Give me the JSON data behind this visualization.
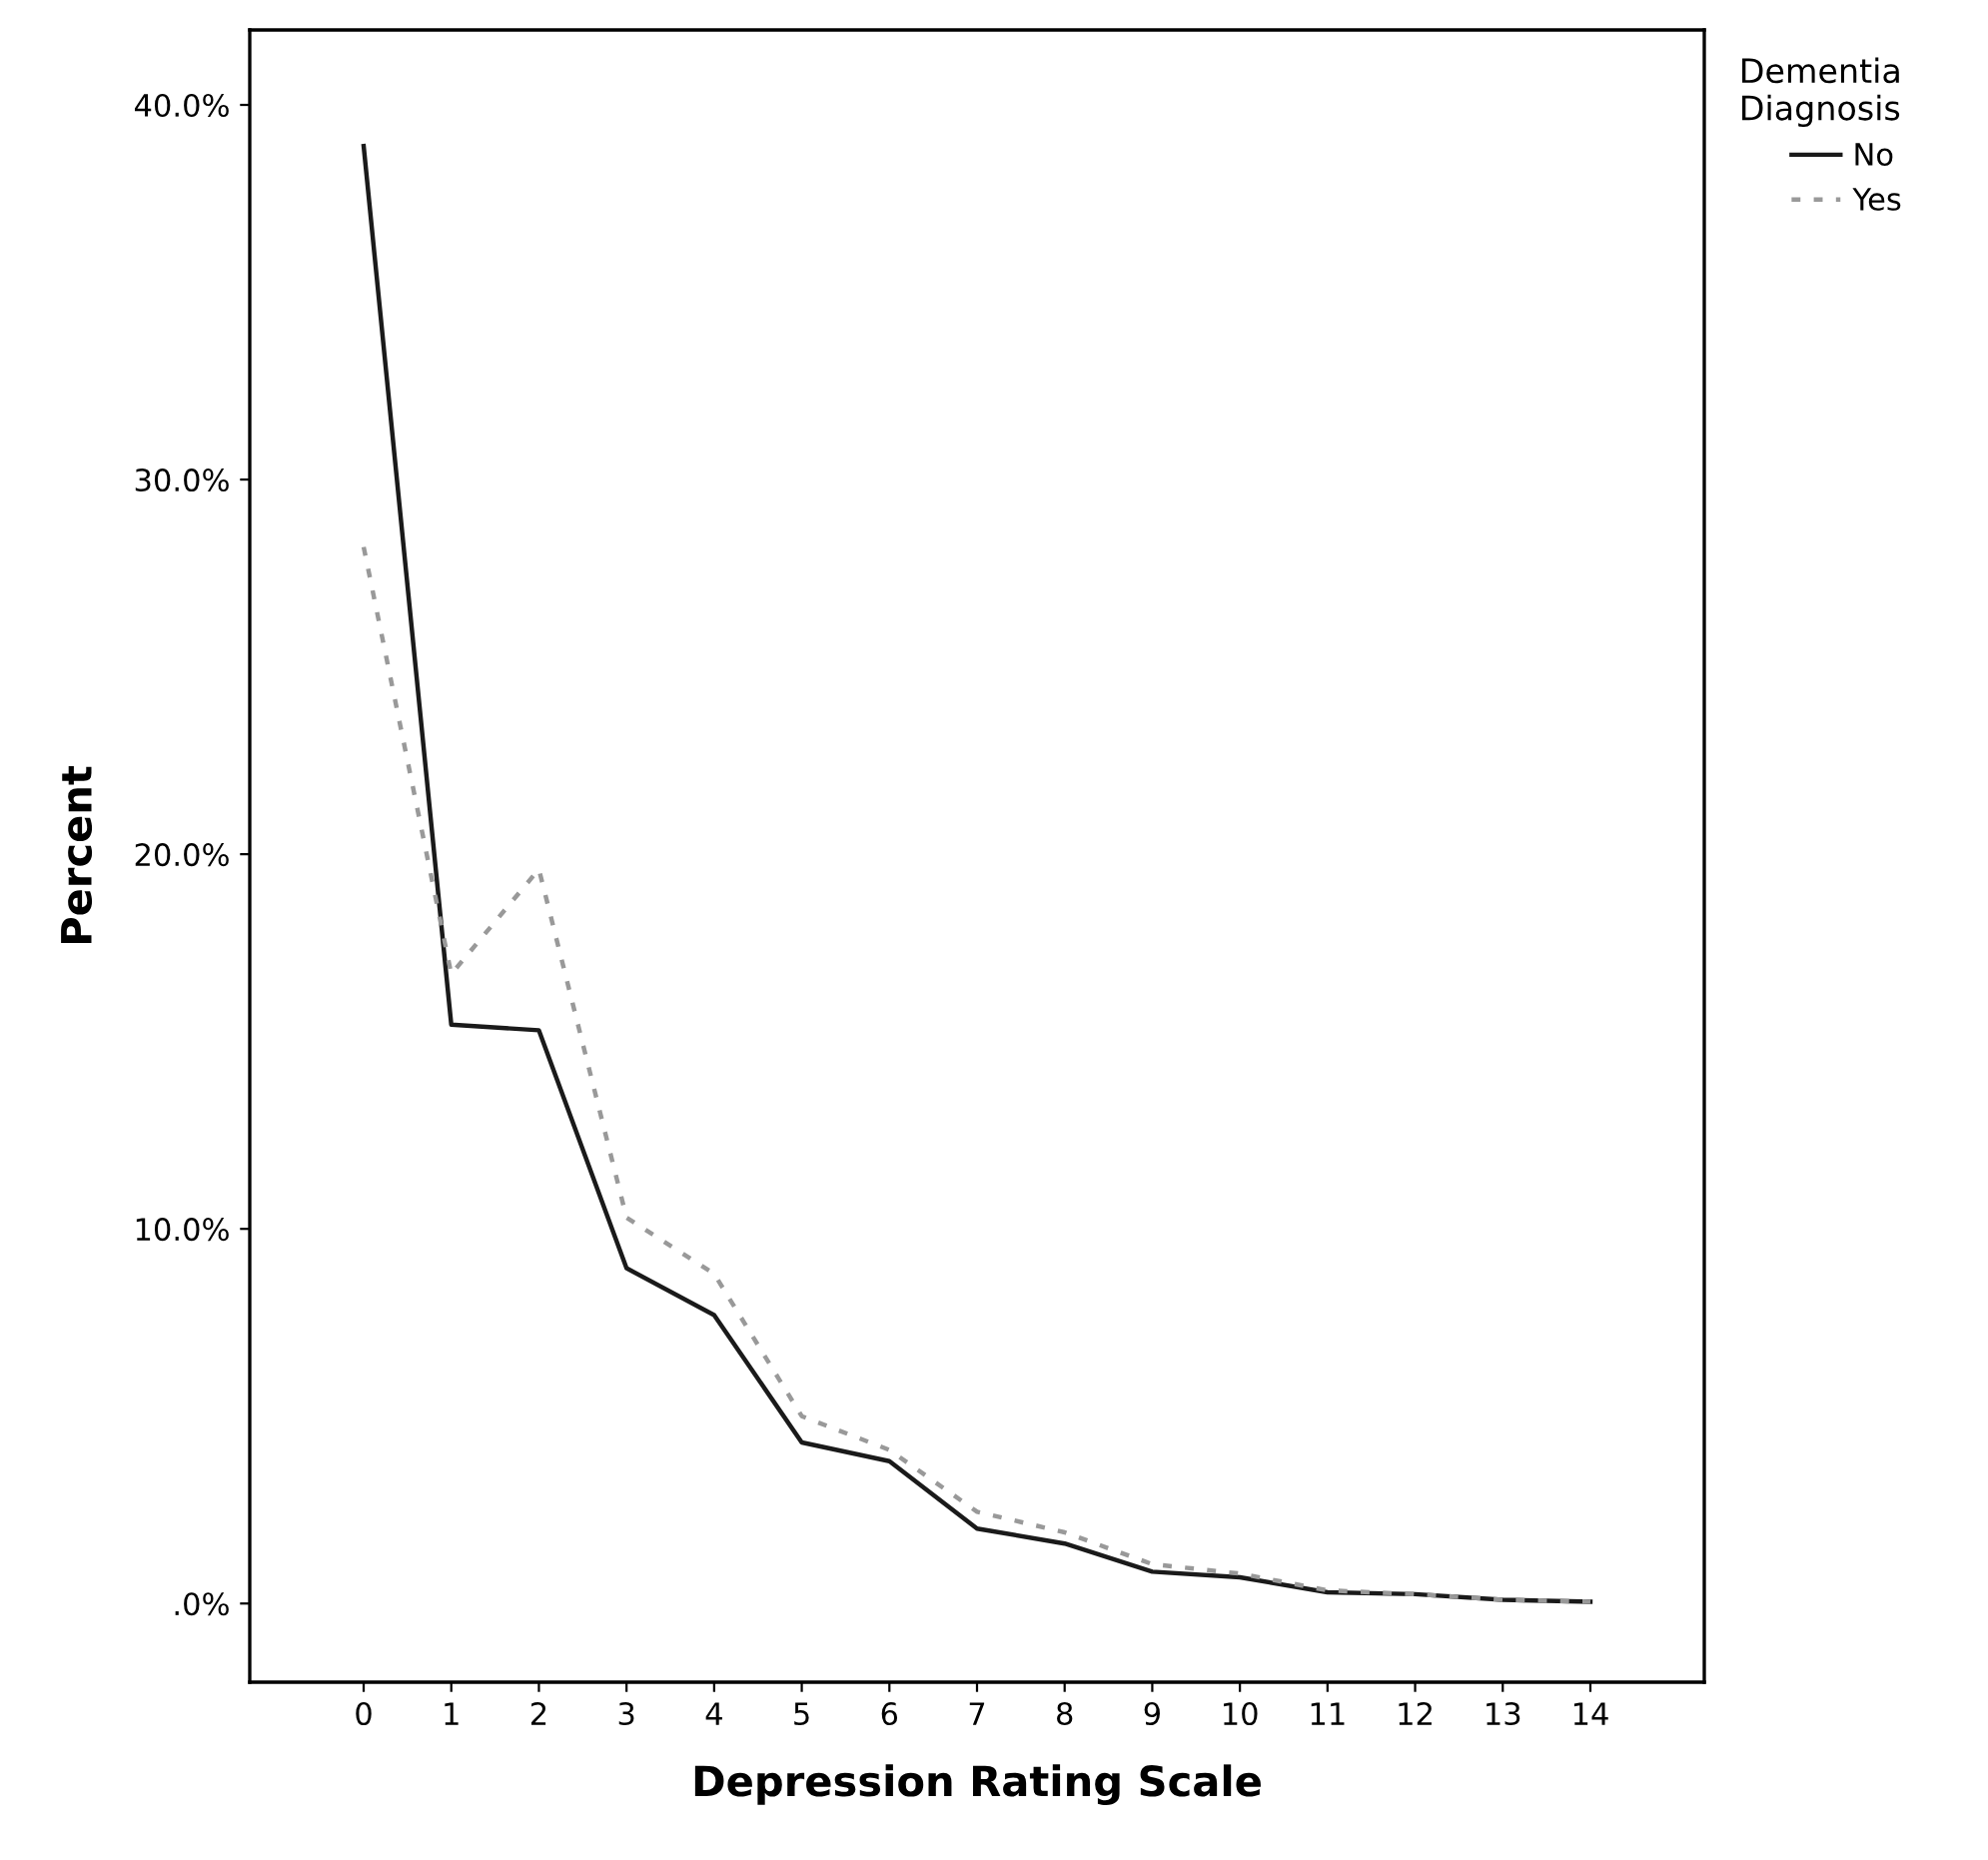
{
  "chart_data": {
    "type": "line",
    "xlabel": "Depression Rating Scale",
    "ylabel": "Percent",
    "legend_title": "Dementia\nDiagnosis",
    "legend": "top right",
    "x": [
      0,
      1,
      2,
      3,
      4,
      5,
      6,
      7,
      8,
      9,
      10,
      11,
      12,
      13,
      14
    ],
    "series": [
      {
        "name": "No",
        "color": "#1a1a1a",
        "line_style": "solid",
        "values": [
          38.9,
          15.45,
          15.3,
          8.95,
          7.7,
          4.3,
          3.8,
          2.0,
          1.6,
          0.85,
          0.7,
          0.3,
          0.25,
          0.1,
          0.05
        ]
      },
      {
        "name": "Yes",
        "color": "#999999",
        "line_style": "dotted",
        "values": [
          28.2,
          16.8,
          19.6,
          10.3,
          8.8,
          5.0,
          4.1,
          2.45,
          1.9,
          1.05,
          0.8,
          0.35,
          0.25,
          0.1,
          0.05
        ]
      }
    ],
    "xlim": [
      -1.3,
      15.3
    ],
    "xticks": [
      0,
      1,
      2,
      3,
      4,
      5,
      6,
      7,
      8,
      9,
      10,
      11,
      12,
      13,
      14
    ],
    "ylim": [
      -2.1,
      42.0
    ],
    "yticks": [
      {
        "value": 0,
        "label": ".0%"
      },
      {
        "value": 10,
        "label": "10.0%"
      },
      {
        "value": 20,
        "label": "20.0%"
      },
      {
        "value": 30,
        "label": "30.0%"
      },
      {
        "value": 40,
        "label": "40.0%"
      }
    ],
    "grid": false,
    "marker": "none"
  }
}
